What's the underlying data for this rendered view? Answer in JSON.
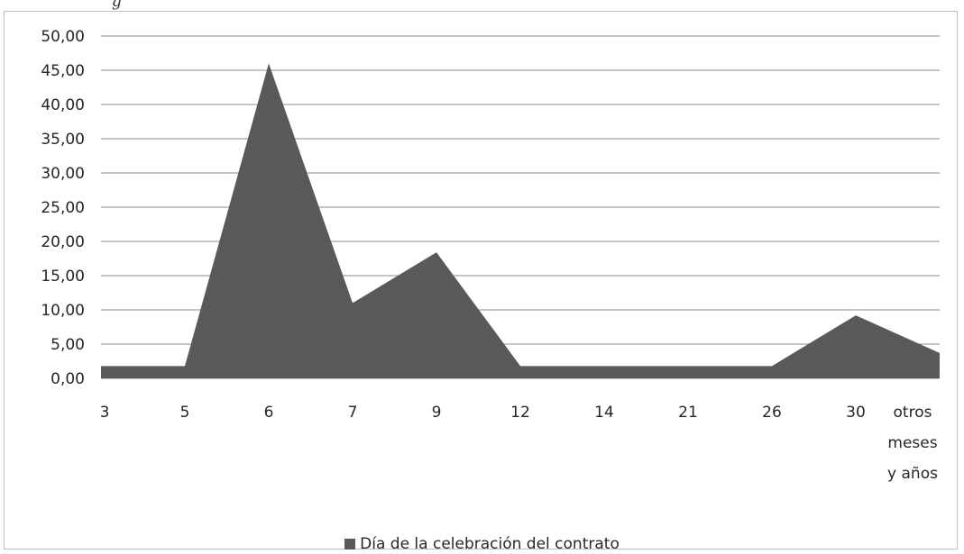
{
  "header_fragment": "g",
  "chart_data": {
    "type": "area",
    "title": "",
    "xlabel": "",
    "ylabel": "",
    "categories": [
      "3",
      "5",
      "6",
      "7",
      "9",
      "12",
      "14",
      "21",
      "26",
      "30",
      "otros meses y años"
    ],
    "category_lines": [
      [
        "3"
      ],
      [
        "5"
      ],
      [
        "6"
      ],
      [
        "7"
      ],
      [
        "9"
      ],
      [
        "12"
      ],
      [
        "14"
      ],
      [
        "21"
      ],
      [
        "26"
      ],
      [
        "30"
      ],
      [
        "otros",
        "meses",
        "y años"
      ]
    ],
    "series": [
      {
        "name": "Día de la celebración del contrato",
        "values": [
          1.8,
          1.8,
          46.0,
          11.0,
          18.4,
          1.8,
          1.8,
          1.8,
          1.8,
          9.2,
          3.7
        ],
        "color": "#595959"
      }
    ],
    "ylim": [
      0,
      50
    ],
    "y_step": 5,
    "y_tick_labels": [
      "0,00",
      "5,00",
      "10,00",
      "15,00",
      "20,00",
      "25,00",
      "30,00",
      "35,00",
      "40,00",
      "45,00",
      "50,00"
    ],
    "grid": true,
    "legend_position": "bottom"
  }
}
